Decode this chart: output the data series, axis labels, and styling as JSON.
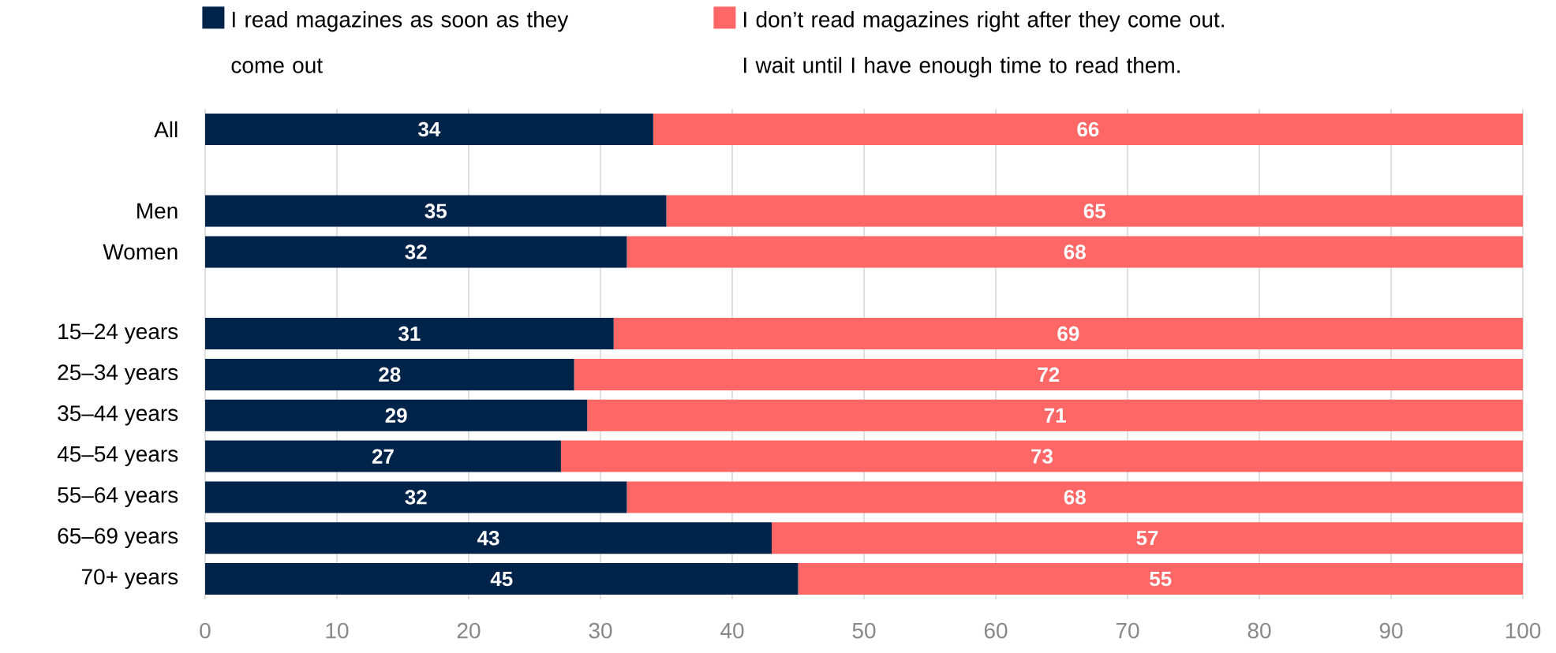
{
  "chart_data": {
    "type": "bar",
    "orientation": "horizontal",
    "stacked": true,
    "categories": [
      "All",
      null,
      "Men",
      "Women",
      null,
      "15–24 years",
      "25–34 years",
      "35–44 years",
      "45–54 years",
      "55–64 years",
      "65–69 years",
      "70+ years"
    ],
    "series": [
      {
        "name": "I read magazines as soon as they come out",
        "color": "#00234a",
        "values": [
          34,
          null,
          35,
          32,
          null,
          31,
          28,
          29,
          27,
          32,
          43,
          45
        ]
      },
      {
        "name": "I don’t read magazines right after they come out. I wait until I have enough time to read them.",
        "color": "#ff6666",
        "values": [
          66,
          null,
          65,
          68,
          null,
          69,
          72,
          71,
          73,
          68,
          57,
          55
        ]
      }
    ],
    "xlim": [
      0,
      100
    ],
    "xticks": [
      0,
      10,
      20,
      30,
      40,
      50,
      60,
      70,
      80,
      90,
      100
    ],
    "grid": "x",
    "legend": "top",
    "data_labels": true
  }
}
